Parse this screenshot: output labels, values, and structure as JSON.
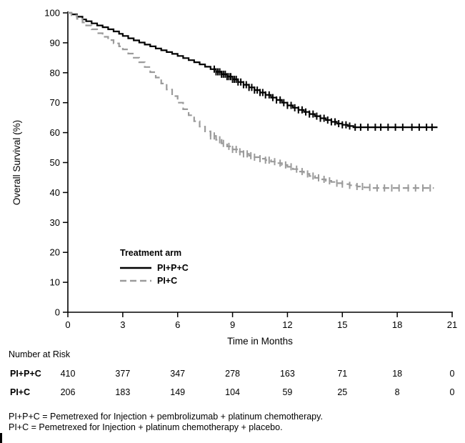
{
  "chart_data": {
    "type": "line",
    "subtype": "kaplan-meier-step",
    "title": "",
    "xlabel": "Time in Months",
    "ylabel": "Overall Survival (%)",
    "xlim": [
      0,
      21
    ],
    "ylim": [
      0,
      100
    ],
    "xticks": [
      0,
      3,
      6,
      9,
      12,
      15,
      18,
      21
    ],
    "yticks": [
      0,
      10,
      20,
      30,
      40,
      50,
      60,
      70,
      80,
      90,
      100
    ],
    "grid": false,
    "legend": {
      "title": "Treatment arm",
      "position": "inside-lower-left"
    },
    "series": [
      {
        "name": "PI+P+C",
        "color": "#000000",
        "line_style": "solid",
        "points": [
          [
            0,
            100
          ],
          [
            0.2,
            99.5
          ],
          [
            0.5,
            98.7
          ],
          [
            0.8,
            97.8
          ],
          [
            1.0,
            97.2
          ],
          [
            1.3,
            96.5
          ],
          [
            1.6,
            95.8
          ],
          [
            1.9,
            95.2
          ],
          [
            2.2,
            94.5
          ],
          [
            2.5,
            93.8
          ],
          [
            2.8,
            93.0
          ],
          [
            3.0,
            92.3
          ],
          [
            3.3,
            91.5
          ],
          [
            3.6,
            90.8
          ],
          [
            3.9,
            90.1
          ],
          [
            4.2,
            89.4
          ],
          [
            4.5,
            88.8
          ],
          [
            4.8,
            88.1
          ],
          [
            5.1,
            87.5
          ],
          [
            5.4,
            86.9
          ],
          [
            5.7,
            86.3
          ],
          [
            6.0,
            85.6
          ],
          [
            6.3,
            84.9
          ],
          [
            6.6,
            84.2
          ],
          [
            6.9,
            83.5
          ],
          [
            7.2,
            82.8
          ],
          [
            7.5,
            82.0
          ],
          [
            7.8,
            81.2
          ],
          [
            8.1,
            80.3
          ],
          [
            8.4,
            79.5
          ],
          [
            8.7,
            78.7
          ],
          [
            9.0,
            77.8
          ],
          [
            9.3,
            76.9
          ],
          [
            9.6,
            76.0
          ],
          [
            9.9,
            75.1
          ],
          [
            10.2,
            74.2
          ],
          [
            10.5,
            73.4
          ],
          [
            10.8,
            72.6
          ],
          [
            11.1,
            71.7
          ],
          [
            11.4,
            70.9
          ],
          [
            11.7,
            70.0
          ],
          [
            12.0,
            69.1
          ],
          [
            12.3,
            68.3
          ],
          [
            12.6,
            67.6
          ],
          [
            12.9,
            66.9
          ],
          [
            13.2,
            66.2
          ],
          [
            13.5,
            65.5
          ],
          [
            13.8,
            64.8
          ],
          [
            14.1,
            64.2
          ],
          [
            14.4,
            63.6
          ],
          [
            14.7,
            63.0
          ],
          [
            15.0,
            62.6
          ],
          [
            15.3,
            62.2
          ],
          [
            15.6,
            61.8
          ],
          [
            20.2,
            61.8
          ]
        ],
        "censor_times": [
          8.0,
          8.1,
          8.2,
          8.3,
          8.4,
          8.5,
          8.6,
          8.7,
          8.8,
          8.9,
          9.0,
          9.1,
          9.2,
          9.3,
          9.45,
          9.6,
          9.75,
          9.9,
          10.05,
          10.2,
          10.35,
          10.5,
          10.65,
          10.8,
          11.0,
          11.2,
          11.4,
          11.6,
          11.8,
          12.0,
          12.2,
          12.4,
          12.6,
          12.8,
          13.0,
          13.2,
          13.4,
          13.6,
          13.8,
          14.0,
          14.2,
          14.4,
          14.6,
          14.8,
          15.0,
          15.2,
          15.4,
          15.7,
          16.0,
          16.4,
          16.8,
          17.1,
          17.5,
          17.9,
          18.3,
          18.8,
          19.2,
          19.6,
          19.9
        ]
      },
      {
        "name": "PI+C",
        "color": "#9b9b9b",
        "line_style": "dashed",
        "points": [
          [
            0,
            100
          ],
          [
            0.2,
            99.2
          ],
          [
            0.5,
            98.0
          ],
          [
            0.8,
            96.8
          ],
          [
            1.0,
            95.8
          ],
          [
            1.3,
            94.5
          ],
          [
            1.6,
            93.2
          ],
          [
            1.9,
            92.0
          ],
          [
            2.2,
            90.9
          ],
          [
            2.5,
            89.8
          ],
          [
            2.8,
            88.8
          ],
          [
            3.0,
            87.8
          ],
          [
            3.3,
            86.4
          ],
          [
            3.6,
            85.0
          ],
          [
            3.9,
            83.5
          ],
          [
            4.2,
            81.9
          ],
          [
            4.5,
            80.2
          ],
          [
            4.8,
            78.4
          ],
          [
            5.1,
            76.4
          ],
          [
            5.4,
            74.4
          ],
          [
            5.7,
            72.2
          ],
          [
            6.0,
            70.0
          ],
          [
            6.3,
            67.8
          ],
          [
            6.6,
            65.8
          ],
          [
            6.9,
            63.8
          ],
          [
            7.2,
            62.0
          ],
          [
            7.5,
            60.4
          ],
          [
            7.8,
            58.9
          ],
          [
            8.1,
            57.6
          ],
          [
            8.4,
            56.4
          ],
          [
            8.7,
            55.4
          ],
          [
            9.0,
            54.4
          ],
          [
            9.3,
            53.6
          ],
          [
            9.6,
            52.9
          ],
          [
            9.9,
            52.3
          ],
          [
            10.2,
            51.8
          ],
          [
            10.5,
            51.3
          ],
          [
            10.8,
            50.8
          ],
          [
            11.1,
            50.3
          ],
          [
            11.4,
            49.8
          ],
          [
            11.7,
            49.2
          ],
          [
            12.0,
            48.6
          ],
          [
            12.3,
            47.8
          ],
          [
            12.6,
            47.0
          ],
          [
            12.9,
            46.2
          ],
          [
            13.2,
            45.5
          ],
          [
            13.5,
            44.9
          ],
          [
            13.8,
            44.4
          ],
          [
            14.1,
            43.9
          ],
          [
            14.4,
            43.5
          ],
          [
            14.7,
            43.1
          ],
          [
            15.0,
            42.8
          ],
          [
            15.4,
            42.4
          ],
          [
            15.8,
            42.0
          ],
          [
            16.2,
            41.7
          ],
          [
            16.6,
            41.5
          ],
          [
            20.0,
            41.5
          ]
        ],
        "censor_times": [
          7.8,
          8.0,
          8.3,
          8.5,
          8.8,
          9.0,
          9.2,
          9.4,
          9.6,
          9.8,
          10.0,
          10.2,
          10.5,
          10.8,
          11.0,
          11.3,
          11.6,
          11.9,
          12.2,
          12.5,
          12.8,
          13.1,
          13.4,
          13.7,
          14.0,
          14.3,
          14.7,
          15.0,
          15.4,
          15.8,
          16.1,
          16.5,
          16.9,
          17.3,
          17.7,
          18.1,
          18.6,
          19.0,
          19.4,
          19.8
        ]
      }
    ]
  },
  "risk_table": {
    "heading": "Number at Risk",
    "times": [
      0,
      3,
      6,
      9,
      12,
      15,
      18,
      21
    ],
    "rows": [
      {
        "name": "PI+P+C",
        "values": [
          410,
          377,
          347,
          278,
          163,
          71,
          18,
          0
        ]
      },
      {
        "name": "PI+C",
        "values": [
          206,
          183,
          149,
          104,
          59,
          25,
          8,
          0
        ]
      }
    ]
  },
  "footnotes": [
    "PI+P+C = Pemetrexed for Injection + pembrolizumab + platinum chemotherapy.",
    "PI+C = Pemetrexed for Injection + platinum chemotherapy + placebo."
  ]
}
